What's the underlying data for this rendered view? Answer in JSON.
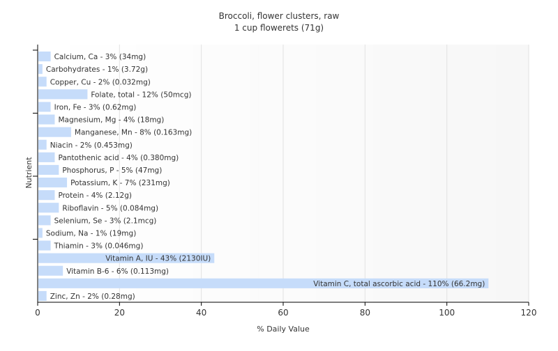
{
  "chart_data": {
    "type": "bar",
    "orientation": "horizontal",
    "title": "Broccoli, flower clusters, raw",
    "subtitle": "1 cup flowerets (71g)",
    "xlabel": "% Daily Value",
    "ylabel": "Nutrient",
    "xlim": [
      0,
      120
    ],
    "xticks": [
      0,
      20,
      40,
      60,
      80,
      100,
      120
    ],
    "grid": true,
    "bar_color": "#c6dcfa",
    "categories": [
      "Calcium, Ca - 3% (34mg)",
      "Carbohydrates - 1% (3.72g)",
      "Copper, Cu - 2% (0.032mg)",
      "Folate, total - 12% (50mcg)",
      "Iron, Fe - 3% (0.62mg)",
      "Magnesium, Mg - 4% (18mg)",
      "Manganese, Mn - 8% (0.163mg)",
      "Niacin - 2% (0.453mg)",
      "Pantothenic acid - 4% (0.380mg)",
      "Phosphorus, P - 5% (47mg)",
      "Potassium, K - 7% (231mg)",
      "Protein - 4% (2.12g)",
      "Riboflavin - 5% (0.084mg)",
      "Selenium, Se - 3% (2.1mcg)",
      "Sodium, Na - 1% (19mg)",
      "Thiamin - 3% (0.046mg)",
      "Vitamin A, IU - 43% (2130IU)",
      "Vitamin B-6 - 6% (0.113mg)",
      "Vitamin C, total ascorbic acid - 110% (66.2mg)",
      "Zinc, Zn - 2% (0.28mg)"
    ],
    "values": [
      3,
      1,
      2,
      12,
      3,
      4,
      8,
      2,
      4,
      5,
      7,
      4,
      5,
      3,
      1,
      3,
      43,
      6,
      110,
      2
    ]
  }
}
